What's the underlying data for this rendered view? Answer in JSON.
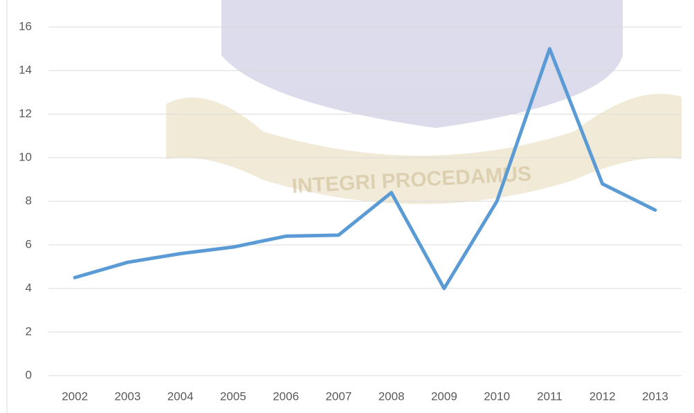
{
  "chart_data": {
    "type": "line",
    "watermark": "INTEGRI PROCEDAMUS",
    "categories": [
      "2002",
      "2003",
      "2004",
      "2005",
      "2006",
      "2007",
      "2008",
      "2009",
      "2010",
      "2011",
      "2012",
      "2013"
    ],
    "values": [
      4.5,
      5.2,
      5.6,
      5.9,
      6.4,
      6.45,
      8.4,
      4.0,
      8.0,
      15.0,
      8.8,
      7.6
    ],
    "color": "#5b9bd5",
    "ylim": [
      0,
      16
    ],
    "yticks": [
      0,
      2,
      4,
      6,
      8,
      10,
      12,
      14,
      16
    ],
    "grid": true
  }
}
